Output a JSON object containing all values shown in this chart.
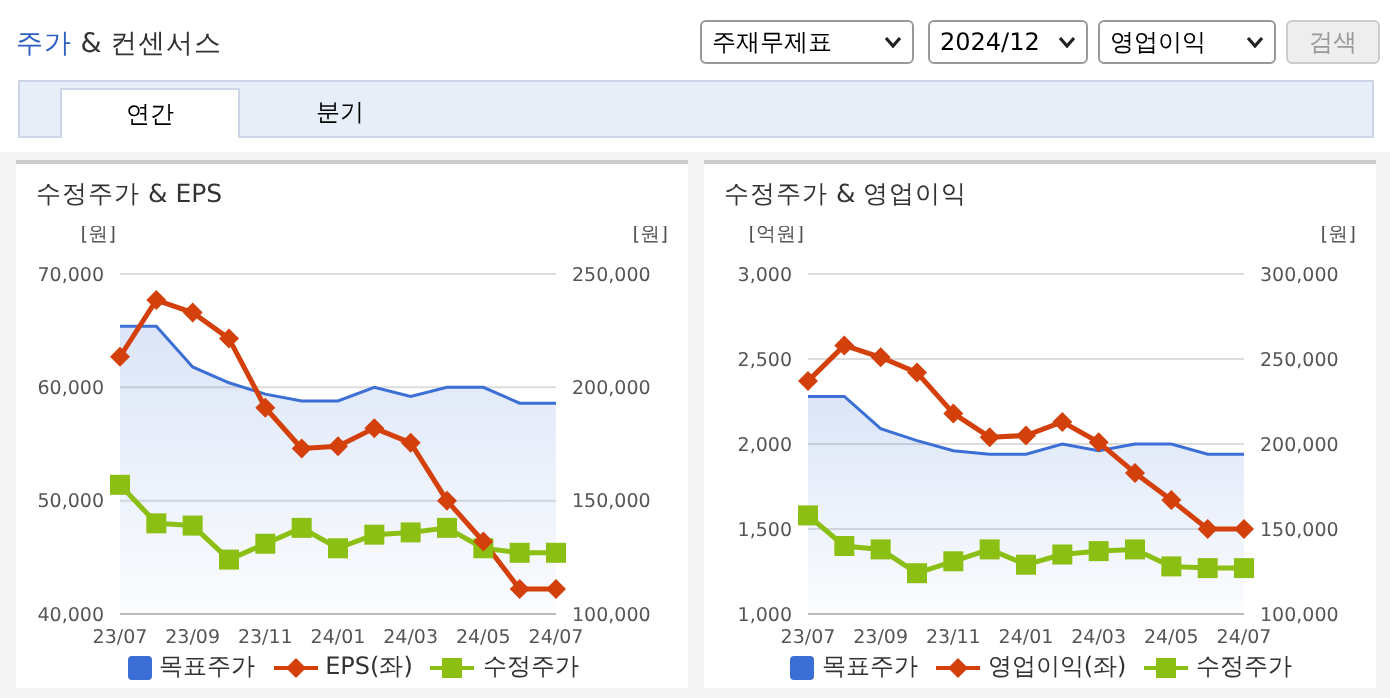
{
  "chart_data": [
    {
      "type": "line",
      "title": "수정주가 & EPS",
      "ylabel": "[원]",
      "y2label": "[원]",
      "annotations": [
        "주가 & 컨센서스",
        "주재무제표",
        "2024/12",
        "영업이익",
        "검색",
        "연간",
        "분기"
      ],
      "categories": [
        "23/07",
        null,
        "23/09",
        null,
        "23/11",
        null,
        "24/01",
        null,
        "24/03",
        null,
        "24/05",
        null,
        "24/07"
      ],
      "ylim": [
        40000,
        70000
      ],
      "yticks": [
        {
          "value": 40000,
          "label": "40,000"
        },
        {
          "value": 50000,
          "label": "50,000"
        },
        {
          "value": 60000,
          "label": "60,000"
        },
        {
          "value": 70000,
          "label": "70,000"
        }
      ],
      "y2lim": [
        100000,
        250000
      ],
      "y2ticks": [
        {
          "value": 100000,
          "label": "100,000"
        },
        {
          "value": 150000,
          "label": "150,000"
        },
        {
          "value": 200000,
          "label": "200,000"
        },
        {
          "value": 250000,
          "label": "250,000"
        }
      ],
      "grid": "y",
      "legend": "bottom",
      "series": [
        {
          "name": "목표주가",
          "type": "area",
          "axis": "y2",
          "color": "#3b6fd6",
          "marker": "none",
          "values": [
            227000,
            227000,
            209000,
            202000,
            197000,
            194000,
            194000,
            200000,
            196000,
            200000,
            200000,
            193000,
            193000
          ]
        },
        {
          "name": "EPS(좌)",
          "type": "line",
          "axis": "y",
          "color": "#d4400c",
          "marker": "diamond",
          "values": [
            62700,
            67700,
            66600,
            64300,
            58200,
            54600,
            54800,
            56400,
            55100,
            50000,
            46400,
            42200,
            42200
          ]
        },
        {
          "name": "수정주가",
          "type": "line",
          "axis": "y2",
          "color": "#8cbf14",
          "marker": "square",
          "values": [
            157000,
            140000,
            139000,
            124000,
            131000,
            138000,
            129000,
            135000,
            136000,
            138000,
            129000,
            127000,
            127000
          ]
        }
      ]
    },
    {
      "type": "line",
      "title": "수정주가 & 영업이익",
      "ylabel": "[억원]",
      "y2label": "[원]",
      "categories": [
        "23/07",
        null,
        "23/09",
        null,
        "23/11",
        null,
        "24/01",
        null,
        "24/03",
        null,
        "24/05",
        null,
        "24/07"
      ],
      "ylim": [
        1000,
        3000
      ],
      "yticks": [
        {
          "value": 1000,
          "label": "1,000"
        },
        {
          "value": 1500,
          "label": "1,500"
        },
        {
          "value": 2000,
          "label": "2,000"
        },
        {
          "value": 2500,
          "label": "2,500"
        },
        {
          "value": 3000,
          "label": "3,000"
        }
      ],
      "y2lim": [
        100000,
        300000
      ],
      "y2ticks": [
        {
          "value": 100000,
          "label": "100,000"
        },
        {
          "value": 150000,
          "label": "150,000"
        },
        {
          "value": 200000,
          "label": "200,000"
        },
        {
          "value": 250000,
          "label": "250,000"
        },
        {
          "value": 300000,
          "label": "300,000"
        }
      ],
      "grid": "y",
      "legend": "bottom",
      "series": [
        {
          "name": "목표주가",
          "type": "area",
          "axis": "y2",
          "color": "#3b6fd6",
          "marker": "none",
          "values": [
            228000,
            228000,
            209000,
            202000,
            196000,
            194000,
            194000,
            200000,
            196000,
            200000,
            200000,
            194000,
            194000
          ]
        },
        {
          "name": "영업이익(좌)",
          "type": "line",
          "axis": "y",
          "color": "#d4400c",
          "marker": "diamond",
          "values": [
            2370,
            2580,
            2510,
            2420,
            2180,
            2040,
            2050,
            2130,
            2010,
            1830,
            1670,
            1500,
            1500
          ]
        },
        {
          "name": "수정주가",
          "type": "line",
          "axis": "y2",
          "color": "#8cbf14",
          "marker": "square",
          "values": [
            158000,
            140000,
            138000,
            124000,
            131000,
            138000,
            129000,
            135000,
            137000,
            138000,
            128000,
            127000,
            127000
          ]
        }
      ]
    }
  ]
}
